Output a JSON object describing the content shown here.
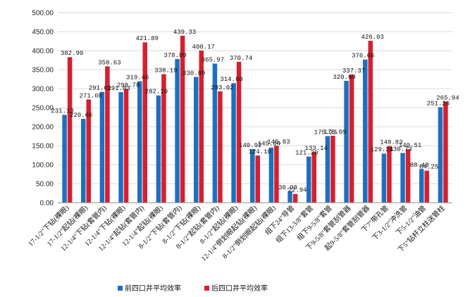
{
  "chart_data": {
    "type": "bar",
    "title": "",
    "xlabel": "",
    "ylabel": "",
    "ylim": [
      0,
      500
    ],
    "yticks": [
      "0.00",
      "50.00",
      "100.00",
      "150.00",
      "200.00",
      "250.00",
      "300.00",
      "350.00",
      "400.00",
      "450.00",
      "500.00"
    ],
    "grid": true,
    "legend_position": "bottom-left",
    "categories": [
      "17-1/2\"下钻(裸眼)",
      "17-1/2\"起钻(裸眼)",
      "12-1/4\"下钻(套管内)",
      "12-1/4\"下钻(裸眼)",
      "12-1/4\"起钻(套管内)",
      "12-1/4\"起钻(裸眼)",
      "8-1/2\"下钻(套管内)",
      "8-1/2\"下钻(裸眼)",
      "8-1/2\"起钻(套管内)",
      "8-1/2\"起钻(裸眼)",
      "12-1/4\"倒划眼起钻(裸眼)",
      "8-1/2\"倒划眼起钻(裸眼)",
      "组下24\"导管",
      "组下13-3/8\"套管",
      "组下9-5/8\"套管",
      "下9-5/8\"套管刮管器",
      "起9-5/8\"套管刮管器",
      "下7\"带孔管",
      "下3-1/2\"冲洗管",
      "下5-1/2\"油管",
      "下5\"钻杆立柱送管柱"
    ],
    "series": [
      {
        "name": "前四口井平均效率",
        "color": "#1f6fc0",
        "values": [
          231.13,
          220.66,
          291.61,
          291.03,
          319.46,
          282.1,
          378.09,
          330.89,
          365.97,
          314.6,
          140.92,
          145.04,
          30.08,
          121.3,
          175.23,
          320.69,
          376.66,
          129.24,
          130.73,
          88.48,
          251.26
        ],
        "labels": [
          "231.13",
          "220.66",
          "291.61",
          "291.03",
          "319.46",
          "282.10",
          "378.09",
          "330.89",
          "365.97",
          "314.60",
          "140.92",
          "145.04",
          "30.08",
          "121.30",
          "175.23",
          "320.69",
          "376.66",
          "129.24",
          "130.73",
          "88.48",
          "251.26"
        ]
      },
      {
        "name": "后四口井平均效率",
        "color": "#d4202e",
        "values": [
          382.9,
          271.6,
          358.63,
          298.78,
          421.89,
          338.19,
          439.33,
          400.17,
          293.02,
          370.74,
          124.1,
          149.83,
          22.94,
          133.14,
          176.09,
          337.37,
          426.03,
          148.83,
          140.51,
          84.25,
          265.94
        ],
        "labels": [
          "382.90",
          "271.60",
          "358.63",
          "298.78",
          "421.89",
          "338.19",
          "439.33",
          "400.17",
          "293.02",
          "370.74",
          "124.10",
          "149.83",
          "22.94",
          "133.14",
          "176.09",
          "337.37",
          "426.03",
          "148.83",
          "140.51",
          "84.25",
          "265.94"
        ]
      }
    ]
  }
}
